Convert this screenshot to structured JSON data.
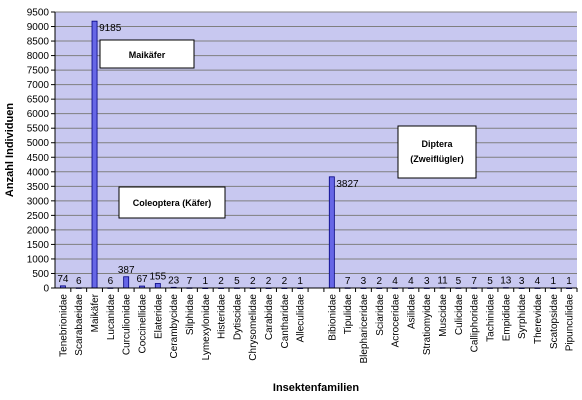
{
  "chart_data": {
    "type": "bar",
    "title": "",
    "xlabel": "Insektenfamilien",
    "ylabel": "Anzahl Individuen",
    "ylim": [
      0,
      9500
    ],
    "ytick_step": 500,
    "grid": true,
    "colors": {
      "plot_bg": "#c8c8f0",
      "bar": "#6666e6",
      "bar_edge": "#000080",
      "grid": "#7f7f7f"
    },
    "categories": [
      "Tenebrionidae",
      "Scarabaeidae",
      "Maikäfer",
      "Lucanidae",
      "Curculionidae",
      "Coccinellidae",
      "Elateridae",
      "Cerambycidae",
      "Silphidae",
      "Lymexylonidae",
      "Histeridae",
      "Dytiscidae",
      "Chrysomelidae",
      "Carabidae",
      "Cantharidae",
      "Alleculidae",
      "",
      "Bibionidae",
      "Tipulidae",
      "Blephariceridae",
      "Sciaridae",
      "Acroceridae",
      "Asilidae",
      "Stratiomyidae",
      "Muscidae",
      "Culicidae",
      "Calliphoridae",
      "Tachinidae",
      "Empididae",
      "Syrphidae",
      "Therevidae",
      "Scatopsidae",
      "Pipunculidae"
    ],
    "values": [
      74,
      6,
      9185,
      6,
      387,
      67,
      155,
      23,
      7,
      1,
      2,
      5,
      2,
      2,
      2,
      1,
      null,
      3827,
      7,
      3,
      2,
      4,
      4,
      3,
      11,
      5,
      7,
      5,
      13,
      3,
      4,
      1,
      1
    ],
    "data_labels": [
      "74",
      "6",
      "9185",
      "6",
      "387",
      "67",
      "155",
      "23",
      "7",
      "1",
      "2",
      "5",
      "2",
      "2",
      "2",
      "1",
      "",
      "3827",
      "7",
      "3",
      "2",
      "4",
      "4",
      "3",
      "11",
      "5",
      "7",
      "5",
      "13",
      "3",
      "4",
      "1",
      "1"
    ],
    "annotations": [
      {
        "text": "Maikäfer",
        "box": true
      },
      {
        "text": "Coleoptera (Käfer)",
        "box": true
      },
      {
        "text": "Diptera (Zweiflügler)",
        "box": true
      }
    ]
  }
}
